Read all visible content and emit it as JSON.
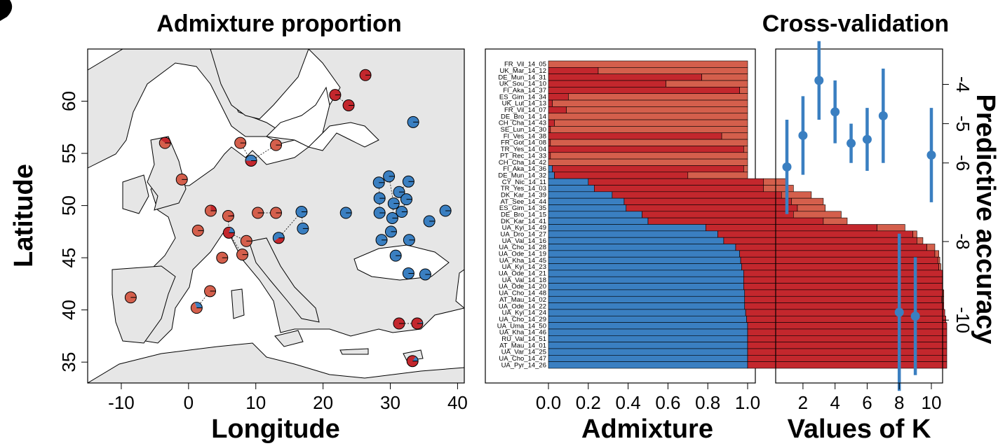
{
  "colors": {
    "red": "#c3272d",
    "salmon": "#d45f4c",
    "blue": "#3a7fc1",
    "land": "#e6e6e6"
  },
  "map": {
    "title": "Admixture proportion",
    "xlabel": "Longitude",
    "ylabel": "Latitude",
    "xticks": [
      "-10",
      "0",
      "10",
      "20",
      "30",
      "40"
    ],
    "yticks": [
      "35",
      "40",
      "45",
      "50",
      "55",
      "60"
    ]
  },
  "bars": {
    "xlabel": "Admixture",
    "xticks": [
      "0.0",
      "0.2",
      "0.4",
      "0.6",
      "0.8",
      "1.0"
    ]
  },
  "cv": {
    "title": "Cross-validation",
    "xlabel": "Values of K",
    "ylabel": "Predictive accuracy",
    "xticks": [
      "2",
      "4",
      "6",
      "8",
      "10"
    ],
    "yticks": [
      "-4",
      "-5",
      "-6",
      "-8",
      "-10"
    ]
  },
  "chart_data": [
    {
      "type": "scatter",
      "title": "Admixture proportion",
      "xlabel": "Longitude",
      "ylabel": "Latitude",
      "xlim": [
        -15,
        41
      ],
      "ylim": [
        33,
        65
      ],
      "points": [
        {
          "lon": -8.6,
          "lat": 41.2,
          "blue": 0.0,
          "red": 0.0
        },
        {
          "lon": -3.5,
          "lat": 56.0,
          "blue": 0.0,
          "red": 0.4
        },
        {
          "lon": -1.0,
          "lat": 52.5,
          "blue": 0.0,
          "red": 0.02
        },
        {
          "lon": 1.4,
          "lat": 47.6,
          "blue": 0.0,
          "red": 0.0
        },
        {
          "lon": 3.3,
          "lat": 49.5,
          "blue": 0.0,
          "red": 0.25
        },
        {
          "lon": 5.0,
          "lat": 45.0,
          "blue": 0.0,
          "red": 0.0
        },
        {
          "lon": 5.9,
          "lat": 49.0,
          "blue": 0.0,
          "red": 0.05
        },
        {
          "lon": 6.0,
          "lat": 47.4,
          "blue": 0.2,
          "red": 0.8
        },
        {
          "lon": 8.0,
          "lat": 45.3,
          "blue": 0.0,
          "red": 0.0
        },
        {
          "lon": 8.6,
          "lat": 46.6,
          "blue": 0.0,
          "red": 0.0
        },
        {
          "lon": 7.7,
          "lat": 56.0,
          "blue": 0.0,
          "red": 0.0
        },
        {
          "lon": 9.3,
          "lat": 54.3,
          "blue": 0.5,
          "red": 0.5
        },
        {
          "lon": 10.3,
          "lat": 49.3,
          "blue": 0.0,
          "red": 0.0
        },
        {
          "lon": 13.0,
          "lat": 49.3,
          "blue": 0.0,
          "red": 0.0
        },
        {
          "lon": 13.0,
          "lat": 55.8,
          "blue": 0.0,
          "red": 0.0
        },
        {
          "lon": 13.4,
          "lat": 46.9,
          "blue": 0.6,
          "red": 0.4
        },
        {
          "lon": 16.8,
          "lat": 49.4,
          "blue": 1.0,
          "red": 0.0
        },
        {
          "lon": 17.0,
          "lat": 47.8,
          "blue": 1.0,
          "red": 0.0
        },
        {
          "lon": 23.4,
          "lat": 49.3,
          "blue": 1.0,
          "red": 0.0
        },
        {
          "lon": 21.8,
          "lat": 60.6,
          "blue": 0.0,
          "red": 1.0
        },
        {
          "lon": 23.8,
          "lat": 59.6,
          "blue": 0.0,
          "red": 1.0
        },
        {
          "lon": 26.3,
          "lat": 62.5,
          "blue": 0.0,
          "red": 1.0
        },
        {
          "lon": 33.4,
          "lat": 58.0,
          "blue": 1.0,
          "red": 0.0
        },
        {
          "lon": 28.3,
          "lat": 52.2,
          "blue": 1.0,
          "red": 0.0
        },
        {
          "lon": 29.8,
          "lat": 52.8,
          "blue": 1.0,
          "red": 0.0
        },
        {
          "lon": 28.4,
          "lat": 50.7,
          "blue": 1.0,
          "red": 0.0
        },
        {
          "lon": 30.5,
          "lat": 50.2,
          "blue": 1.0,
          "red": 0.0
        },
        {
          "lon": 28.4,
          "lat": 49.3,
          "blue": 1.0,
          "red": 0.0
        },
        {
          "lon": 30.3,
          "lat": 48.8,
          "blue": 1.0,
          "red": 0.0
        },
        {
          "lon": 31.3,
          "lat": 51.3,
          "blue": 1.0,
          "red": 0.0
        },
        {
          "lon": 32.4,
          "lat": 50.6,
          "blue": 1.0,
          "red": 0.0
        },
        {
          "lon": 31.7,
          "lat": 49.4,
          "blue": 1.0,
          "red": 0.0
        },
        {
          "lon": 32.7,
          "lat": 52.3,
          "blue": 1.0,
          "red": 0.0
        },
        {
          "lon": 30.1,
          "lat": 47.5,
          "blue": 1.0,
          "red": 0.0
        },
        {
          "lon": 28.7,
          "lat": 46.7,
          "blue": 1.0,
          "red": 0.0
        },
        {
          "lon": 32.8,
          "lat": 46.7,
          "blue": 1.0,
          "red": 0.0
        },
        {
          "lon": 30.8,
          "lat": 45.2,
          "blue": 1.0,
          "red": 0.0
        },
        {
          "lon": 35.8,
          "lat": 48.5,
          "blue": 1.0,
          "red": 0.0
        },
        {
          "lon": 38.2,
          "lat": 49.5,
          "blue": 1.0,
          "red": 0.0
        },
        {
          "lon": 32.7,
          "lat": 43.5,
          "blue": 1.0,
          "red": 0.0
        },
        {
          "lon": 35.2,
          "lat": 43.4,
          "blue": 1.0,
          "red": 0.0
        },
        {
          "lon": 3.2,
          "lat": 41.8,
          "blue": 0.0,
          "red": 0.0
        },
        {
          "lon": 1.2,
          "lat": 40.2,
          "blue": 0.3,
          "red": 0.0
        },
        {
          "lon": 31.3,
          "lat": 38.7,
          "blue": 0.0,
          "red": 1.0
        },
        {
          "lon": 34.0,
          "lat": 38.7,
          "blue": 0.05,
          "red": 0.95
        },
        {
          "lon": 33.3,
          "lat": 35.1,
          "blue": 0.15,
          "red": 0.85
        }
      ]
    },
    {
      "type": "bar",
      "orientation": "horizontal",
      "xlabel": "Admixture",
      "xlim": [
        0,
        1
      ],
      "categories": [
        "FR_Vil_14_05",
        "UK_Mar_14_12",
        "DE_Mun_14_31",
        "UK_Sou_14_10",
        "FI_Aka_14_37",
        "ES_Gim_14_34",
        "UK_Lut_14_13",
        "FR_Vil_14_07",
        "DE_Bro_14_14",
        "CH_Cha_14_43",
        "SE_Lun_14_30",
        "FI_Ves_14_38",
        "FR_Got_14_08",
        "TR_Yes_14_04",
        "PT_Rec_14_33",
        "CH_Cha_14_42",
        "FI_Aka_14_36",
        "DE_Mun_14_32",
        "CY_Nic_14_11",
        "TR_Yes_14_03",
        "DK_Kar_14_39",
        "AT_See_14_44",
        "ES_Gim_14_35",
        "DE_Bro_14_15",
        "DK_Kar_14_41",
        "UA_Kyi_14_49",
        "UA_Dro_14_27",
        "UA_Val_14_16",
        "UA_Cho_14_28",
        "UA_Ode_14_19",
        "UA_Kha_14_45",
        "UA_Kyi_14_23",
        "UA_Ode_14_21",
        "UA_Val_14_18",
        "UA_Ode_14_20",
        "UA_Cho_14_48",
        "AT_Mau_14_02",
        "UA_Ode_14_22",
        "UA_Kyi_14_24",
        "UA_Cho_14_29",
        "UA_Uma_14_50",
        "UA_Kha_14_46",
        "RU_Val_14_51",
        "AT_Mau_14_01",
        "UA_Var_14_25",
        "UA_Cho_14_47",
        "UA_Pyr_14_26"
      ],
      "series": [
        {
          "values": [
            0,
            0,
            0,
            0,
            0,
            0,
            0,
            0,
            0,
            0,
            0,
            0,
            0,
            0,
            0,
            0,
            0.02,
            0.03,
            0.2,
            0.23,
            0.32,
            0.38,
            0.39,
            0.47,
            0.5,
            0.79,
            0.85,
            0.88,
            0.94,
            0.96,
            0.965,
            0.97,
            0.98,
            0.98,
            0.98,
            0.985,
            0.985,
            0.985,
            0.99,
            0.995,
            1,
            1,
            1,
            1,
            1,
            1,
            1
          ]
        },
        {
          "values": [
            0,
            0.25,
            0.77,
            0.59,
            0.96,
            0.1,
            0.02,
            0.09,
            0,
            0.03,
            0.01,
            0.87,
            0.01,
            0.98,
            0.01,
            0,
            0.96,
            0.67,
            0.88,
            0.85,
            0.85,
            0.84,
            0.86,
            0.76,
            0.88,
            0.86,
            0.98,
            0.97,
            0.96,
            0.98,
            0.99,
            0.99,
            1,
            1,
            1,
            0.995,
            0.99,
            1,
            1,
            1,
            1,
            1,
            1,
            1,
            1,
            1,
            1
          ]
        },
        {
          "values": [
            1,
            0.75,
            0.23,
            0.41,
            0.04,
            0.9,
            0.98,
            0.91,
            1,
            0.97,
            0.99,
            0.13,
            0.99,
            0.02,
            0.99,
            1,
            0.02,
            0.3,
            0.12,
            0.15,
            0.15,
            0.16,
            0.14,
            0.24,
            0.12,
            0.14,
            0.02,
            0.03,
            0.04,
            0.02,
            0.01,
            0.01,
            0,
            0,
            0,
            0.005,
            0.01,
            0,
            0,
            0,
            0,
            0,
            0,
            0,
            0,
            0,
            0
          ]
        }
      ]
    },
    {
      "type": "scatter",
      "title": "Cross-validation",
      "xlabel": "Values of K",
      "ylabel": "Predictive accuracy",
      "xlim": [
        0.3,
        10.7
      ],
      "ylim": [
        -11.6,
        -3.1
      ],
      "points": [
        {
          "k": 1,
          "y": -6.1,
          "lo": -7.3,
          "hi": -4.9
        },
        {
          "k": 2,
          "y": -5.3,
          "lo": -6.3,
          "hi": -4.3
        },
        {
          "k": 3,
          "y": -3.9,
          "lo": -4.9,
          "hi": -2.9
        },
        {
          "k": 4,
          "y": -4.7,
          "lo": -5.5,
          "hi": -3.9
        },
        {
          "k": 5,
          "y": -5.5,
          "lo": -6.0,
          "hi": -5.0
        },
        {
          "k": 6,
          "y": -5.4,
          "lo": -6.2,
          "hi": -4.6
        },
        {
          "k": 7,
          "y": -4.8,
          "lo": -6.0,
          "hi": -3.6
        },
        {
          "k": 8,
          "y": -9.8,
          "lo": -11.8,
          "hi": -7.8
        },
        {
          "k": 9,
          "y": -9.9,
          "lo": -11.4,
          "hi": -8.4
        },
        {
          "k": 10,
          "y": -5.8,
          "lo": -7.0,
          "hi": -4.6
        }
      ]
    }
  ]
}
